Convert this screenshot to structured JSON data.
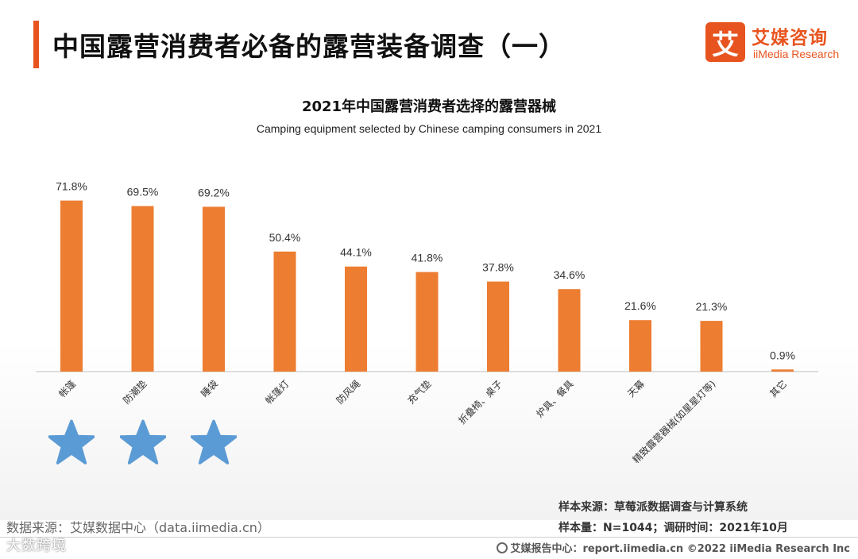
{
  "header": {
    "title": "中国露营消费者必备的露营装备调查（一）",
    "logo_mark": "艾",
    "logo_cn": "艾媒咨询",
    "logo_en": "iiMedia Research"
  },
  "colors": {
    "accent": "#e8541f",
    "bar": "#ed7d31",
    "star": "#5b9bd5",
    "axis": "#bfbfbf"
  },
  "chart_data": {
    "type": "bar",
    "title": "2021年中国露营消费者选择的露营器械",
    "subtitle": "Camping equipment selected by Chinese camping consumers in 2021",
    "categories": [
      "帐篷",
      "防潮垫",
      "睡袋",
      "帐篷灯",
      "防风绳",
      "充气垫",
      "折叠椅、桌子",
      "炉具、餐具",
      "天幕",
      "精致露营器械(如星星灯等)",
      "其它"
    ],
    "values": [
      71.8,
      69.5,
      69.2,
      50.4,
      44.1,
      41.8,
      37.8,
      34.6,
      21.6,
      21.3,
      0.9
    ],
    "labels": [
      "71.8%",
      "69.5%",
      "69.2%",
      "50.4%",
      "44.1%",
      "41.8%",
      "37.8%",
      "34.6%",
      "21.6%",
      "21.3%",
      "0.9%"
    ],
    "unit": "%",
    "ylim": [
      0,
      75
    ],
    "grid": false,
    "starred_categories": [
      "帐篷",
      "防潮垫",
      "睡袋"
    ]
  },
  "notes": {
    "source": "样本来源：草莓派数据调查与计算系统",
    "sample": "样本量：N=1044；调研时间：2021年10月"
  },
  "footer": {
    "data_source": "数据来源：艾媒数据中心（data.iimedia.cn）",
    "watermark": "大数跨境",
    "report_center": "艾媒报告中心：report.iimedia.cn   ©2022  iiMedia Research  Inc"
  }
}
